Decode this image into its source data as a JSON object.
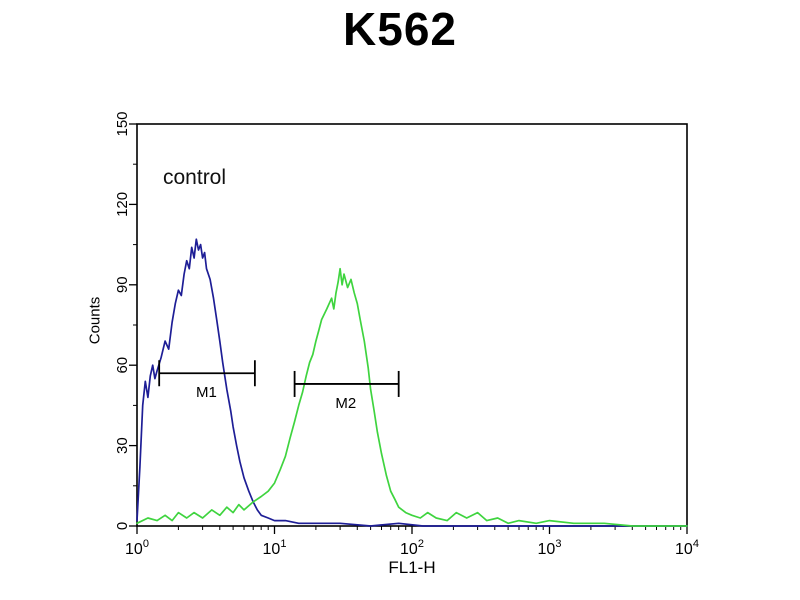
{
  "chart_data": {
    "type": "line",
    "subtype": "flow-cytometry-histogram",
    "title": "K562",
    "annotation": "control",
    "xlabel": "FL1-H",
    "ylabel": "Counts",
    "x_scale": "log",
    "xlim": [
      1,
      10000
    ],
    "ylim": [
      0,
      150
    ],
    "x_tick_exponents": [
      0,
      1,
      2,
      3,
      4
    ],
    "y_ticks": [
      0,
      30,
      60,
      90,
      120,
      150
    ],
    "grid": false,
    "legend": "none",
    "frame_color": "#000000",
    "series": [
      {
        "name": "blue-histogram-control",
        "color": "#1e1e96",
        "points": [
          [
            1.0,
            2
          ],
          [
            1.05,
            22
          ],
          [
            1.1,
            45
          ],
          [
            1.15,
            54
          ],
          [
            1.2,
            48
          ],
          [
            1.25,
            56
          ],
          [
            1.3,
            60
          ],
          [
            1.35,
            55
          ],
          [
            1.4,
            58
          ],
          [
            1.5,
            63
          ],
          [
            1.6,
            69
          ],
          [
            1.7,
            66
          ],
          [
            1.8,
            76
          ],
          [
            1.9,
            83
          ],
          [
            2.0,
            88
          ],
          [
            2.1,
            86
          ],
          [
            2.2,
            94
          ],
          [
            2.3,
            99
          ],
          [
            2.4,
            96
          ],
          [
            2.5,
            104
          ],
          [
            2.6,
            100
          ],
          [
            2.7,
            107
          ],
          [
            2.8,
            103
          ],
          [
            2.9,
            105
          ],
          [
            3.0,
            100
          ],
          [
            3.1,
            102
          ],
          [
            3.2,
            96
          ],
          [
            3.4,
            92
          ],
          [
            3.6,
            85
          ],
          [
            3.8,
            77
          ],
          [
            4.0,
            69
          ],
          [
            4.2,
            61
          ],
          [
            4.5,
            51
          ],
          [
            4.8,
            43
          ],
          [
            5.0,
            37
          ],
          [
            5.3,
            30
          ],
          [
            5.6,
            24
          ],
          [
            6.0,
            18
          ],
          [
            6.5,
            13
          ],
          [
            7.0,
            9
          ],
          [
            7.5,
            6
          ],
          [
            8.0,
            4
          ],
          [
            9.0,
            3
          ],
          [
            10,
            2
          ],
          [
            12,
            2
          ],
          [
            15,
            1
          ],
          [
            20,
            1
          ],
          [
            30,
            1
          ],
          [
            50,
            0
          ],
          [
            80,
            1
          ],
          [
            120,
            0
          ],
          [
            300,
            0
          ],
          [
            1000,
            0
          ],
          [
            3000,
            0
          ],
          [
            10000,
            0
          ]
        ]
      },
      {
        "name": "green-histogram",
        "color": "#3fd43f",
        "points": [
          [
            1.0,
            1
          ],
          [
            1.2,
            3
          ],
          [
            1.4,
            2
          ],
          [
            1.6,
            4
          ],
          [
            1.8,
            2
          ],
          [
            2.0,
            5
          ],
          [
            2.3,
            3
          ],
          [
            2.6,
            5
          ],
          [
            3.0,
            3
          ],
          [
            3.5,
            6
          ],
          [
            4.0,
            4
          ],
          [
            4.5,
            7
          ],
          [
            5.0,
            5
          ],
          [
            5.5,
            8
          ],
          [
            6.0,
            6
          ],
          [
            7.0,
            9
          ],
          [
            8.0,
            11
          ],
          [
            9.0,
            13
          ],
          [
            10,
            16
          ],
          [
            11,
            21
          ],
          [
            12,
            26
          ],
          [
            13,
            33
          ],
          [
            14,
            39
          ],
          [
            15,
            45
          ],
          [
            16,
            50
          ],
          [
            17,
            56
          ],
          [
            18,
            61
          ],
          [
            19,
            64
          ],
          [
            20,
            69
          ],
          [
            21,
            73
          ],
          [
            22,
            77
          ],
          [
            24,
            81
          ],
          [
            26,
            85
          ],
          [
            27,
            81
          ],
          [
            28,
            87
          ],
          [
            29,
            91
          ],
          [
            30,
            96
          ],
          [
            31,
            90
          ],
          [
            32,
            94
          ],
          [
            34,
            89
          ],
          [
            36,
            92
          ],
          [
            38,
            87
          ],
          [
            40,
            83
          ],
          [
            42,
            77
          ],
          [
            45,
            69
          ],
          [
            48,
            59
          ],
          [
            50,
            51
          ],
          [
            53,
            43
          ],
          [
            56,
            35
          ],
          [
            60,
            27
          ],
          [
            65,
            19
          ],
          [
            70,
            13
          ],
          [
            75,
            10
          ],
          [
            80,
            7
          ],
          [
            90,
            5
          ],
          [
            100,
            4
          ],
          [
            115,
            3
          ],
          [
            130,
            5
          ],
          [
            150,
            3
          ],
          [
            180,
            2
          ],
          [
            210,
            5
          ],
          [
            250,
            3
          ],
          [
            300,
            5
          ],
          [
            350,
            2
          ],
          [
            420,
            3
          ],
          [
            500,
            1
          ],
          [
            600,
            2
          ],
          [
            800,
            1
          ],
          [
            1000,
            2
          ],
          [
            1500,
            1
          ],
          [
            2500,
            1
          ],
          [
            4000,
            0
          ],
          [
            7000,
            0
          ],
          [
            10000,
            0
          ]
        ]
      }
    ],
    "gates": [
      {
        "label": "M1",
        "x1": 1.45,
        "x2": 7.2,
        "y": 57,
        "label_x": 3.2
      },
      {
        "label": "M2",
        "x1": 14,
        "x2": 80,
        "y": 53,
        "label_x": 33
      }
    ]
  }
}
